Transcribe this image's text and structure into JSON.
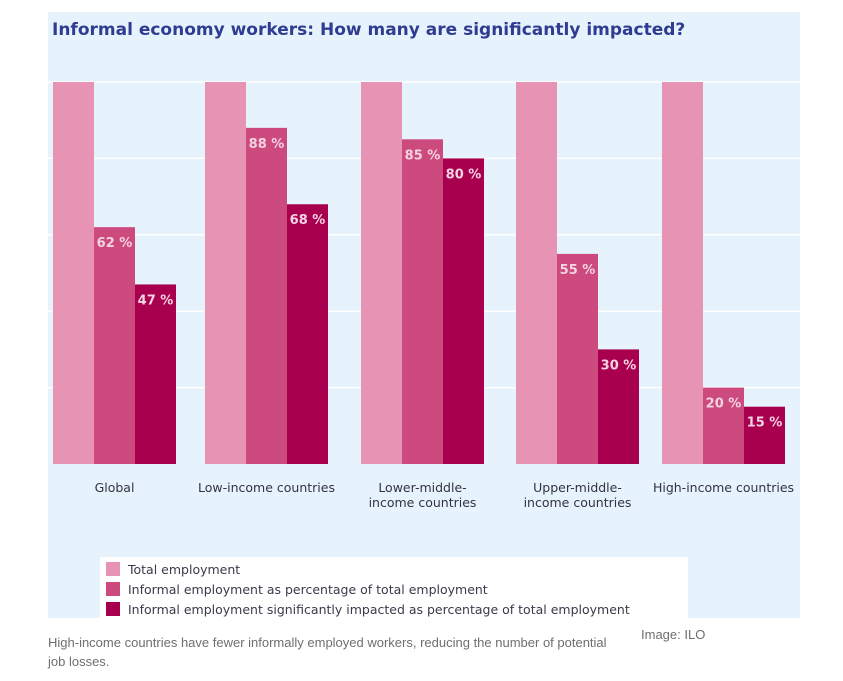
{
  "chart_data": {
    "type": "bar",
    "title": "Informal economy workers: How many are significantly impacted?",
    "categories": [
      [
        "Global"
      ],
      [
        "Low-income countries"
      ],
      [
        "Lower-middle-",
        "income countries"
      ],
      [
        "Upper-middle-",
        "income countries"
      ],
      [
        "High-income countries"
      ]
    ],
    "series": [
      {
        "name": "Total employment",
        "color": "#e693b4",
        "values": [
          100,
          100,
          100,
          100,
          100
        ],
        "labels": [
          "",
          "",
          "",
          "",
          ""
        ]
      },
      {
        "name": "Informal employment as percentage of total employment",
        "color": "#cc4a7e",
        "values": [
          62,
          88,
          85,
          55,
          20
        ],
        "labels": [
          "62 %",
          "88 %",
          "85 %",
          "55 %",
          "20 %"
        ]
      },
      {
        "name": "Informal employment significantly impacted as percentage of  total employment",
        "color": "#a8004f",
        "values": [
          47,
          68,
          80,
          30,
          15
        ],
        "labels": [
          "47 %",
          "68 %",
          "80 %",
          "30 %",
          "15 %"
        ]
      }
    ],
    "ylim": [
      0,
      100
    ],
    "grid": true,
    "legend_position": "bottom-left",
    "label_color": "#f4d3e2",
    "grid_color": "#ffffff",
    "background_color": "#e6f3fc"
  },
  "caption": "High-income countries have fewer informally employed workers, reducing the number of potential job losses.",
  "credit": "Image: ILO"
}
